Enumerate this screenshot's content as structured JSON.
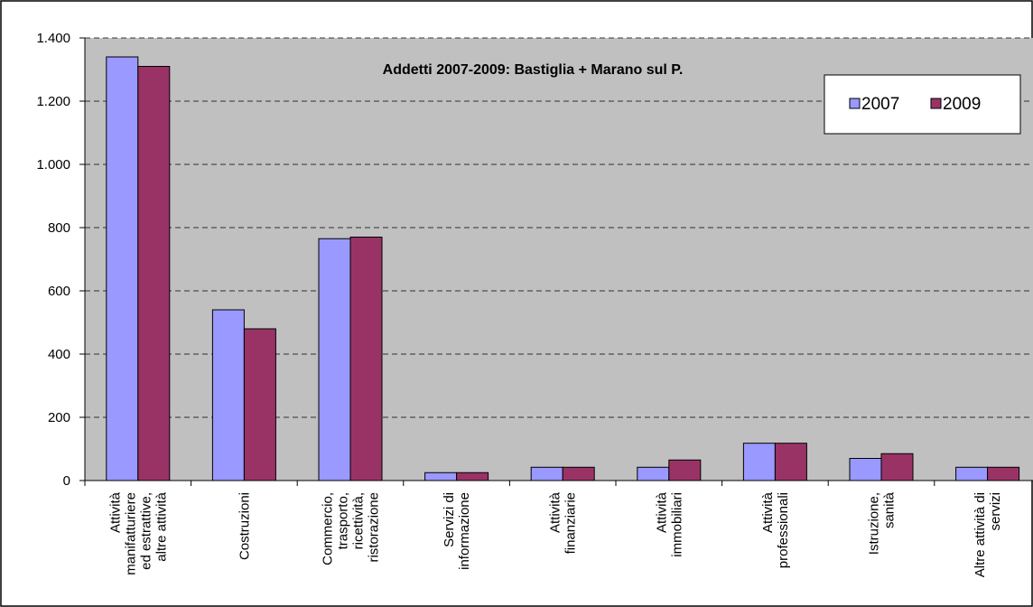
{
  "chart_data": {
    "type": "bar",
    "title": "Addetti 2007-2009: Bastiglia + Marano sul P.",
    "categories": [
      "Attività\nmanifatturiere\ned estrattive,\naltre attività",
      "Costruzioni",
      "Commercio,\ntrasporto,\nricettività,\nristorazione",
      "Servizi di\ninformazione",
      "Attività\nfinanziarie",
      "Attività\nimmobiliari",
      "Attività\nprofessionali",
      "Istruzione,\nsanità",
      "Altre attività di\nservizi"
    ],
    "series": [
      {
        "name": "2007",
        "color": "#9999ff",
        "values": [
          1340,
          540,
          765,
          25,
          42,
          42,
          118,
          70,
          42
        ]
      },
      {
        "name": "2009",
        "color": "#993366",
        "values": [
          1310,
          480,
          770,
          25,
          42,
          65,
          118,
          85,
          42
        ]
      }
    ],
    "ylim": [
      0,
      1400
    ],
    "yticks": [
      0,
      200,
      400,
      600,
      800,
      {
        "value": 1000,
        "label": "1.000"
      },
      {
        "value": 1200,
        "label": "1.200"
      },
      {
        "value": 1400,
        "label": "1.400"
      }
    ],
    "grid": true,
    "legend": "top-right"
  }
}
